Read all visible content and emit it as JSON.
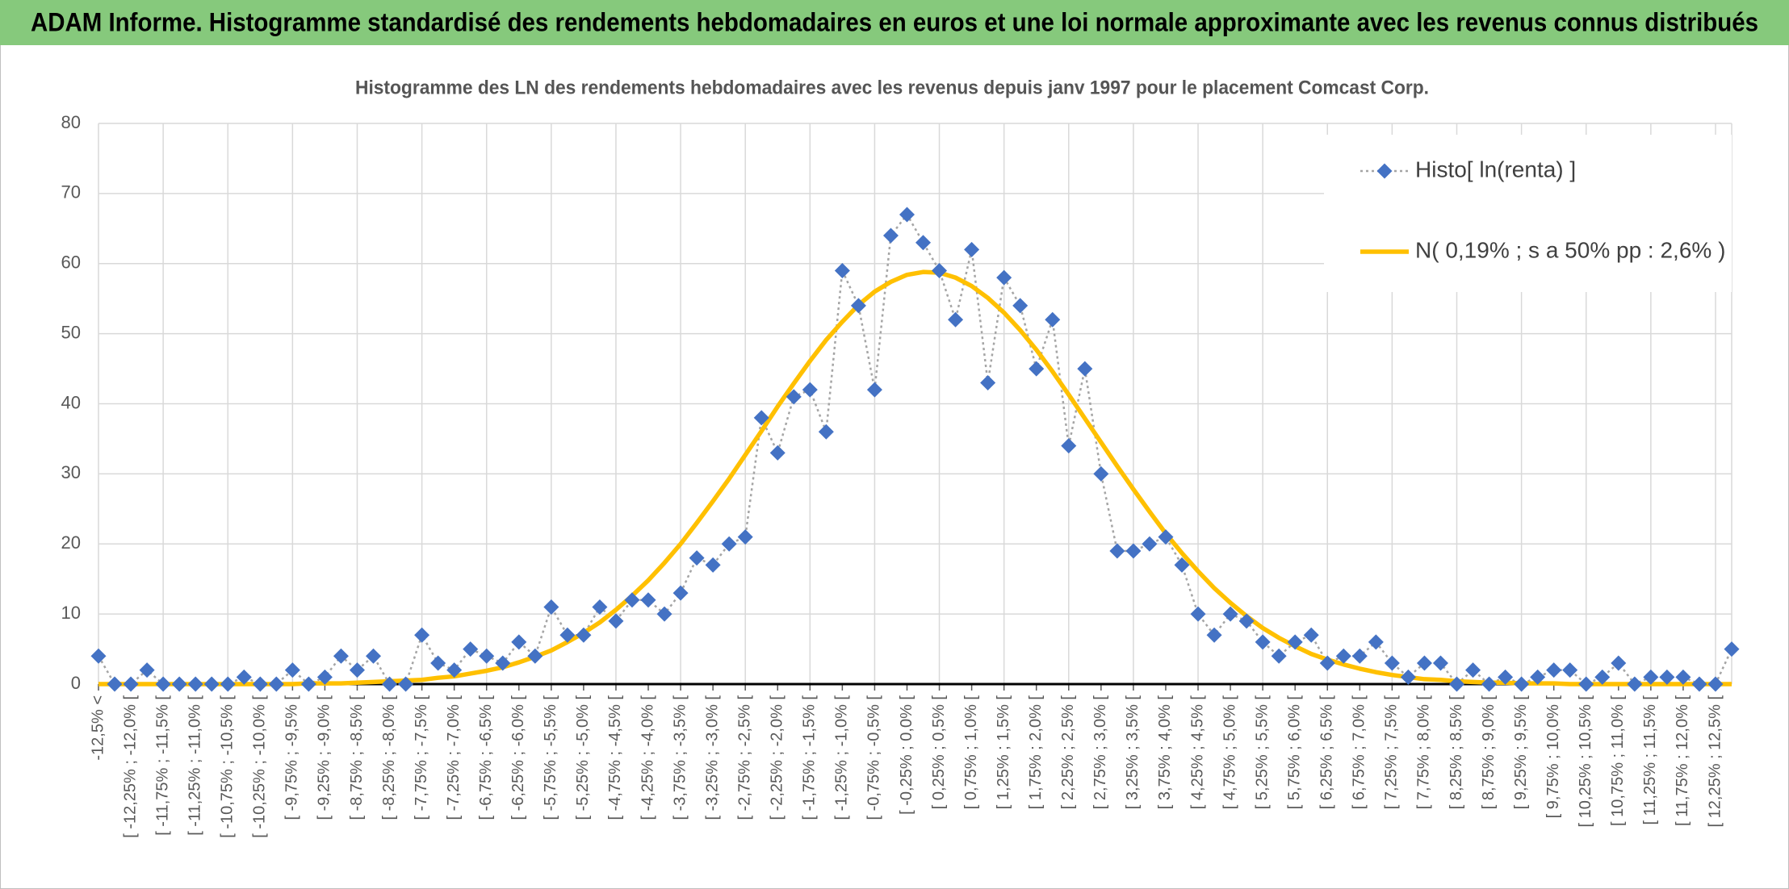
{
  "header": {
    "title": "ADAM Informe. Histogramme standardisé des rendements hebdomadaires en euros et une loi normale approximante avec les revenus connus distribués"
  },
  "chart_data": {
    "type": "line",
    "title": "Histogramme des LN des rendements hebdomadaires avec les revenus depuis janv 1997 pour le placement Comcast Corp.",
    "categories": [
      "-12,5% <",
      null,
      "[ -12,25% ; -12,0% [",
      null,
      "[ -11,75% ; -11,5% [",
      null,
      "[ -11,25% ; -11,0% [",
      null,
      "[ -10,75% ; -10,5% [",
      null,
      "[ -10,25% ; -10,0% [",
      null,
      "[ -9,75% ; -9,5% [",
      null,
      "[ -9,25% ; -9,0% [",
      null,
      "[ -8,75% ; -8,5% [",
      null,
      "[ -8,25% ; -8,0% [",
      null,
      "[ -7,75% ; -7,5% [",
      null,
      "[ -7,25% ; -7,0% [",
      null,
      "[ -6,75% ; -6,5% [",
      null,
      "[ -6,25% ; -6,0% [",
      null,
      "[ -5,75% ; -5,5% [",
      null,
      "[ -5,25% ; -5,0% [",
      null,
      "[ -4,75% ; -4,5% [",
      null,
      "[ -4,25% ; -4,0% [",
      null,
      "[ -3,75% ; -3,5% [",
      null,
      "[ -3,25% ; -3,0% [",
      null,
      "[ -2,75% ; -2,5% [",
      null,
      "[ -2,25% ; -2,0% [",
      null,
      "[ -1,75% ; -1,5% [",
      null,
      "[ -1,25% ; -1,0% [",
      null,
      "[ -0,75% ; -0,5% [",
      null,
      "[ -0,25% ; 0,0% [",
      null,
      "[ 0,25% ; 0,5% [",
      null,
      "[ 0,75% ; 1,0% [",
      null,
      "[ 1,25% ; 1,5% [",
      null,
      "[ 1,75% ; 2,0% [",
      null,
      "[ 2,25% ; 2,5% [",
      null,
      "[ 2,75% ; 3,0% [",
      null,
      "[ 3,25% ; 3,5% [",
      null,
      "[ 3,75% ; 4,0% [",
      null,
      "[ 4,25% ; 4,5% [",
      null,
      "[ 4,75% ; 5,0% [",
      null,
      "[ 5,25% ; 5,5% [",
      null,
      "[ 5,75% ; 6,0% [",
      null,
      "[ 6,25% ; 6,5% [",
      null,
      "[ 6,75% ; 7,0% [",
      null,
      "[ 7,25% ; 7,5% [",
      null,
      "[ 7,75% ; 8,0% [",
      null,
      "[ 8,25% ; 8,5% [",
      null,
      "[ 8,75% ; 9,0% [",
      null,
      "[ 9,25% ; 9,5% [",
      null,
      "[ 9,75% ; 10,0% [",
      null,
      "[ 10,25% ; 10,5% [",
      null,
      "[ 10,75% ; 11,0% [",
      null,
      "[ 11,25% ; 11,5% [",
      null,
      "[ 11,75% ; 12,0% [",
      null,
      "[ 12,25% ; 12,5% [",
      null
    ],
    "series": [
      {
        "name": "Histo[ ln(renta) ]",
        "color": "#4472c4",
        "line_color": "#a5a5a5",
        "marker": "diamond",
        "line_style": "dotted",
        "values": [
          4,
          0,
          0,
          2,
          0,
          0,
          0,
          0,
          0,
          1,
          0,
          0,
          2,
          0,
          1,
          4,
          2,
          4,
          0,
          0,
          7,
          3,
          2,
          5,
          4,
          3,
          6,
          4,
          11,
          7,
          7,
          11,
          9,
          12,
          12,
          10,
          13,
          18,
          17,
          20,
          21,
          38,
          33,
          41,
          42,
          36,
          59,
          54,
          42,
          64,
          67,
          63,
          59,
          52,
          62,
          43,
          58,
          54,
          45,
          52,
          34,
          45,
          30,
          19,
          19,
          20,
          21,
          17,
          10,
          7,
          10,
          9,
          6,
          4,
          6,
          7,
          3,
          4,
          4,
          6,
          3,
          1,
          3,
          3,
          0,
          2,
          0,
          1,
          0,
          1,
          2,
          2,
          0,
          1,
          3,
          0,
          1,
          1,
          1,
          0,
          0,
          5
        ]
      },
      {
        "name": "N( 0,19% ; s a 50% pp : 2,6% )",
        "color": "#ffc000",
        "line_style": "solid",
        "values": [
          0,
          0,
          0,
          0,
          0,
          0,
          0,
          0,
          0,
          0,
          0,
          0,
          0,
          0.1,
          0.1,
          0.1,
          0.2,
          0.3,
          0.4,
          0.5,
          0.6,
          0.9,
          1.1,
          1.5,
          1.9,
          2.4,
          3.1,
          3.9,
          4.8,
          6.0,
          7.3,
          8.8,
          10.6,
          12.6,
          14.8,
          17.3,
          20.0,
          23.0,
          26.1,
          29.3,
          32.7,
          36.1,
          39.6,
          42.9,
          46.1,
          49.1,
          51.7,
          54.1,
          56.0,
          57.4,
          58.4,
          58.8,
          58.7,
          58.0,
          56.8,
          55.1,
          53.0,
          50.5,
          47.7,
          44.6,
          41.3,
          37.9,
          34.5,
          31.1,
          27.8,
          24.6,
          21.5,
          18.7,
          16.1,
          13.7,
          11.6,
          9.7,
          8.0,
          6.6,
          5.4,
          4.3,
          3.5,
          2.8,
          2.2,
          1.7,
          1.3,
          1.0,
          0.7,
          0.6,
          0.4,
          0.3,
          0.2,
          0.2,
          0.1,
          0.1,
          0.1,
          0,
          0,
          0,
          0,
          0,
          0,
          0,
          0,
          0,
          0,
          0
        ]
      }
    ],
    "ylim": [
      0,
      80
    ],
    "yticks": [
      0,
      10,
      20,
      30,
      40,
      50,
      60,
      70,
      80
    ],
    "grid": true,
    "legend": "upper right"
  }
}
